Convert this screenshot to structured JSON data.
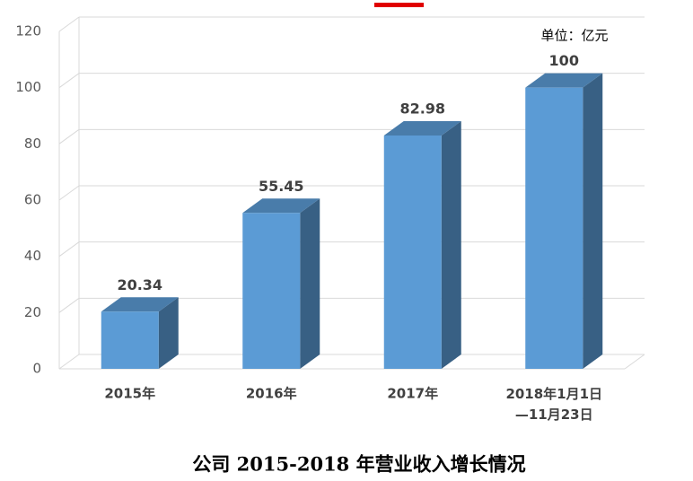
{
  "chart_data": {
    "type": "bar3d",
    "title": "公司 2015-2018 年营业收入增长情况",
    "unit_note": "单位：亿元",
    "categories": [
      "2015年",
      "2016年",
      "2017年",
      "2018年1月1日\n—11月23日"
    ],
    "values": [
      20.34,
      55.45,
      82.98,
      100
    ],
    "color": "#5b9bd5",
    "label_color": "#ff0000",
    "ylim": [
      0,
      120
    ],
    "yticks": [
      0,
      20,
      40,
      60,
      80,
      100,
      120
    ],
    "grid": true
  }
}
